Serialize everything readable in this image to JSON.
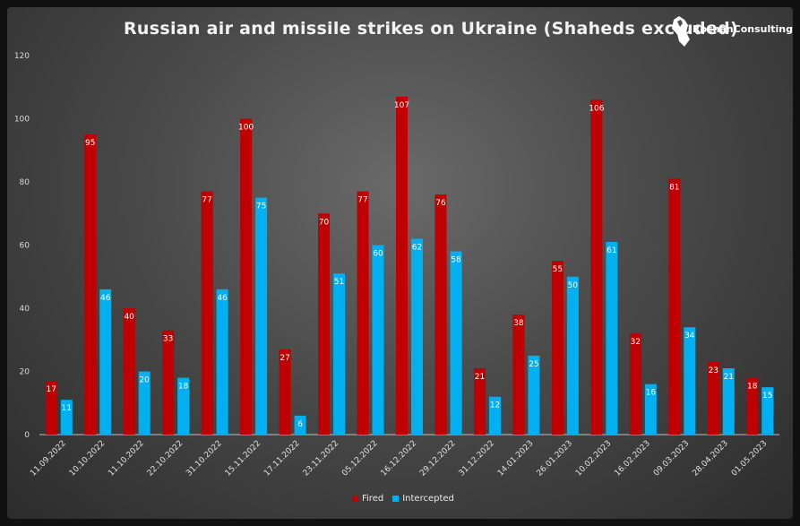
{
  "chart_data": {
    "type": "bar",
    "title": "Russian air and missile strikes on Ukraine (Shaheds excluded)",
    "xlabel": "",
    "ylabel": "",
    "ylim": [
      0,
      120
    ],
    "yticks": [
      "0",
      "20",
      "40",
      "60",
      "80",
      "100",
      "120"
    ],
    "grid": false,
    "legend_placement": "bottom-center",
    "categories": [
      "11.09.2022",
      "10.10.2022",
      "11.10.2022",
      "22.10.2022",
      "31.10.2022",
      "15.11.2022",
      "17.11.2022",
      "23.11.2022",
      "05.12.2022",
      "16.12.2022",
      "29.12.2022",
      "31.12.2022",
      "14.01.2023",
      "26.01.2023",
      "10.02.2023",
      "16.02.2023",
      "09.03.2023",
      "28.04.2023",
      "01.05.2023"
    ],
    "series": [
      {
        "name": "Fired",
        "color": "#c00000",
        "values": [
          17,
          95,
          40,
          33,
          77,
          100,
          27,
          70,
          77,
          107,
          76,
          21,
          38,
          55,
          106,
          32,
          81,
          23,
          18
        ]
      },
      {
        "name": "Intercepted",
        "color": "#00b0f0",
        "values": [
          11,
          46,
          20,
          18,
          46,
          75,
          6,
          51,
          60,
          62,
          58,
          12,
          25,
          50,
          61,
          16,
          34,
          21,
          15
        ]
      }
    ]
  },
  "logo": {
    "text": "RochanConsulting"
  },
  "colors": {
    "fired": "#c00000",
    "intercepted": "#00b0f0",
    "background": "#4a4a4a"
  }
}
